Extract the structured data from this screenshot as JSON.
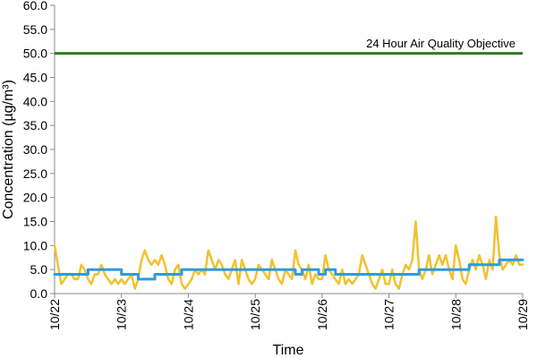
{
  "chart_data": {
    "type": "line",
    "xlabel": "Time",
    "ylabel": "Concentration (µg/m³)",
    "ylim": [
      0,
      60
    ],
    "y_ticks": [
      "0.0",
      "5.0",
      "10.0",
      "15.0",
      "20.0",
      "25.0",
      "30.0",
      "35.0",
      "40.0",
      "45.0",
      "50.0",
      "55.0",
      "60.0"
    ],
    "x_ticks": [
      "10/22",
      "10/23",
      "10/24",
      "10/25",
      "10/26",
      "10/27",
      "10/28",
      "10/29"
    ],
    "x_unit": "days from 10/22",
    "grid": false,
    "legend": "none",
    "colors": {
      "objective": "#2e7d1f",
      "hourly": "#f2c12e",
      "rolling": "#2f9ae0"
    },
    "annotations": [
      {
        "text": "24 Hour Air Quality Objective",
        "y": 50
      }
    ],
    "objective_line": {
      "y": 50,
      "x_start": 0,
      "x_end": 7
    },
    "series": [
      {
        "key": "hourly",
        "x": [
          0.0,
          0.05,
          0.1,
          0.15,
          0.2,
          0.25,
          0.3,
          0.35,
          0.4,
          0.45,
          0.5,
          0.55,
          0.6,
          0.65,
          0.7,
          0.75,
          0.8,
          0.85,
          0.9,
          0.95,
          1.0,
          1.05,
          1.1,
          1.15,
          1.2,
          1.25,
          1.3,
          1.35,
          1.4,
          1.45,
          1.5,
          1.55,
          1.6,
          1.65,
          1.7,
          1.75,
          1.8,
          1.85,
          1.9,
          1.95,
          2.0,
          2.05,
          2.1,
          2.15,
          2.2,
          2.25,
          2.3,
          2.35,
          2.4,
          2.45,
          2.5,
          2.55,
          2.6,
          2.65,
          2.7,
          2.75,
          2.8,
          2.85,
          2.9,
          2.95,
          3.0,
          3.05,
          3.1,
          3.15,
          3.2,
          3.25,
          3.3,
          3.35,
          3.4,
          3.45,
          3.5,
          3.55,
          3.6,
          3.65,
          3.7,
          3.75,
          3.8,
          3.85,
          3.9,
          3.95,
          4.0,
          4.05,
          4.1,
          4.15,
          4.2,
          4.25,
          4.3,
          4.35,
          4.4,
          4.45,
          4.5,
          4.55,
          4.6,
          4.65,
          4.7,
          4.75,
          4.8,
          4.85,
          4.9,
          4.95,
          5.0,
          5.05,
          5.1,
          5.15,
          5.2,
          5.25,
          5.3,
          5.35,
          5.4,
          5.45,
          5.5,
          5.55,
          5.6,
          5.65,
          5.7,
          5.75,
          5.8,
          5.85,
          5.9,
          5.95,
          6.0,
          6.05,
          6.1,
          6.15,
          6.2,
          6.25,
          6.3,
          6.35,
          6.4,
          6.45,
          6.5,
          6.55,
          6.6,
          6.65,
          6.7,
          6.75,
          6.8,
          6.85,
          6.9,
          6.95,
          7.0
        ],
        "values": [
          10,
          6,
          2,
          3,
          4,
          4,
          3,
          3,
          6,
          5,
          3,
          2,
          4,
          4,
          6,
          4,
          3,
          2,
          3,
          2,
          3,
          2,
          3,
          4,
          1,
          3,
          7,
          9,
          7,
          6,
          7,
          6,
          8,
          6,
          3,
          2,
          5,
          6,
          2,
          1,
          2,
          3,
          5,
          4,
          5,
          4,
          9,
          7,
          5,
          7,
          6,
          4,
          3,
          5,
          7,
          2,
          7,
          5,
          3,
          2,
          3,
          6,
          5,
          4,
          3,
          7,
          5,
          3,
          2,
          5,
          4,
          3,
          9,
          6,
          5,
          3,
          6,
          2,
          4,
          3,
          3,
          8,
          5,
          4,
          3,
          2,
          5,
          2,
          3,
          2,
          3,
          4,
          8,
          6,
          4,
          2,
          1,
          3,
          5,
          2,
          2,
          5,
          2,
          1,
          4,
          6,
          5,
          7,
          15,
          5,
          3,
          5,
          8,
          4,
          6,
          8,
          6,
          8,
          5,
          3,
          10,
          7,
          3,
          2,
          5,
          7,
          5,
          8,
          6,
          3,
          7,
          5,
          16,
          8,
          5,
          6,
          7,
          6,
          8,
          6,
          6
        ]
      },
      {
        "key": "rolling",
        "x": [
          0,
          0.5,
          0.5,
          1.0,
          1.0,
          1.25,
          1.25,
          1.5,
          1.5,
          1.9,
          1.9,
          3.6,
          3.6,
          3.7,
          3.7,
          3.95,
          3.95,
          4.05,
          4.05,
          4.2,
          4.2,
          4.6,
          4.6,
          5.45,
          5.45,
          5.7,
          5.7,
          6.2,
          6.2,
          6.65,
          6.65,
          7.0
        ],
        "values": [
          4,
          4,
          5,
          5,
          4,
          4,
          3,
          3,
          4,
          4,
          5,
          5,
          4,
          4,
          5,
          5,
          4,
          4,
          5,
          5,
          4,
          4,
          4,
          4,
          5,
          5,
          5,
          5,
          6,
          6,
          7,
          7
        ]
      }
    ]
  }
}
